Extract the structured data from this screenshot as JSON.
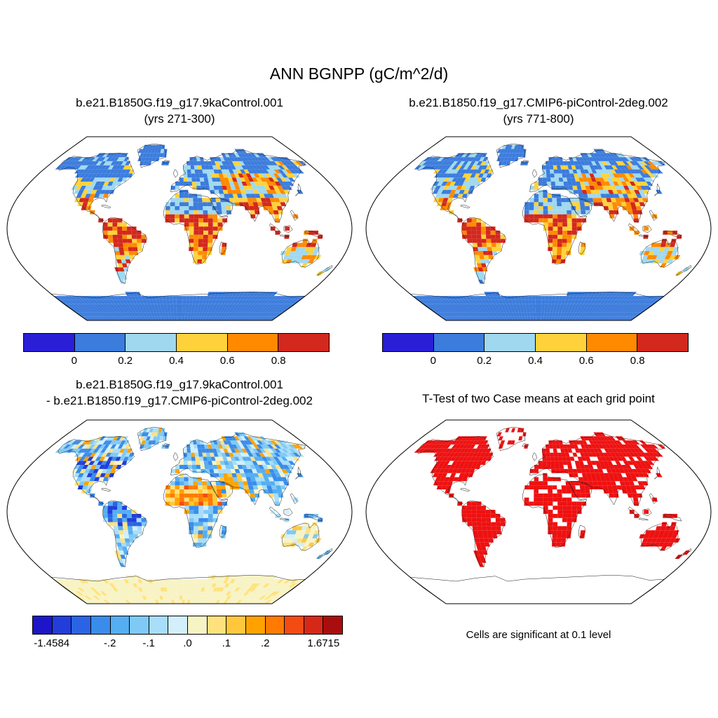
{
  "figure": {
    "title": "ANN BGNPP (gC/m^2/d)",
    "panels": {
      "top_left": {
        "title": "b.e21.B1850G.f19_g17.9kaControl.001",
        "subtitle": "(yrs 271-300)"
      },
      "top_right": {
        "title": "b.e21.B1850.f19_g17.CMIP6-piControl-2deg.002",
        "subtitle": "(yrs 771-800)"
      },
      "bottom_left": {
        "title": "b.e21.B1850G.f19_g17.9kaControl.001",
        "subtitle": "- b.e21.B1850.f19_g17.CMIP6-piControl-2deg.002"
      },
      "bottom_right": {
        "title": "T-Test of two Case means at each grid point",
        "caption": "Cells are significant at 0.1 level"
      }
    }
  },
  "chart_data": [
    {
      "type": "heatmap",
      "projection": "robinson",
      "title": "b.e21.B1850G.f19_g17.9kaControl.001",
      "subtitle": "(yrs 271-300)",
      "variable": "ANN BGNPP",
      "units": "gC/m^2/d",
      "render": "bgnpp",
      "seed": 7,
      "colorbar": {
        "colors": [
          "#2a1fd6",
          "#3c7cdc",
          "#a0d8ef",
          "#ffd23c",
          "#ff8a00",
          "#d3281e"
        ],
        "tick_labels": [
          "0",
          "0.2",
          "0.4",
          "0.6",
          "0.8"
        ],
        "tick_positions": [
          1,
          2,
          3,
          4,
          5
        ],
        "legend_position": "below"
      }
    },
    {
      "type": "heatmap",
      "projection": "robinson",
      "title": "b.e21.B1850.f19_g17.CMIP6-piControl-2deg.002",
      "subtitle": "(yrs 771-800)",
      "variable": "ANN BGNPP",
      "units": "gC/m^2/d",
      "render": "bgnpp",
      "seed": 19,
      "colorbar": {
        "colors": [
          "#2a1fd6",
          "#3c7cdc",
          "#a0d8ef",
          "#ffd23c",
          "#ff8a00",
          "#d3281e"
        ],
        "tick_labels": [
          "0",
          "0.2",
          "0.4",
          "0.6",
          "0.8"
        ],
        "tick_positions": [
          1,
          2,
          3,
          4,
          5
        ],
        "legend_position": "below"
      }
    },
    {
      "type": "heatmap",
      "projection": "robinson",
      "title": "b.e21.B1850G.f19_g17.9kaControl.001 - b.e21.B1850.f19_g17.CMIP6-piControl-2deg.002",
      "variable": "ANN BGNPP difference",
      "units": "gC/m^2/d",
      "value_min": -1.4584,
      "value_max": 1.6715,
      "render": "diff",
      "seed": 5,
      "colorbar": {
        "colors": [
          "#1c16c8",
          "#233ddb",
          "#2a64e4",
          "#3a8ceb",
          "#55aef1",
          "#7ec9f6",
          "#a8def9",
          "#d2effb",
          "#f8f3c4",
          "#ffe27d",
          "#ffc83c",
          "#ffa200",
          "#ff7a00",
          "#f34b14",
          "#d62817",
          "#aa0d0d"
        ],
        "tick_labels": [
          "-1.4584",
          "-.2",
          "-.1",
          ".0",
          ".1",
          ".2",
          "1.6715"
        ],
        "tick_positions": [
          1,
          4,
          6,
          8,
          10,
          12,
          15
        ],
        "legend_position": "below"
      }
    },
    {
      "type": "heatmap",
      "projection": "robinson",
      "title": "T-Test of two Case means at each grid point",
      "caption": "Cells are significant at 0.1 level",
      "significance_level": "0.1",
      "render": "ttest",
      "seed": 3,
      "significant_color": "#ee1111"
    }
  ]
}
